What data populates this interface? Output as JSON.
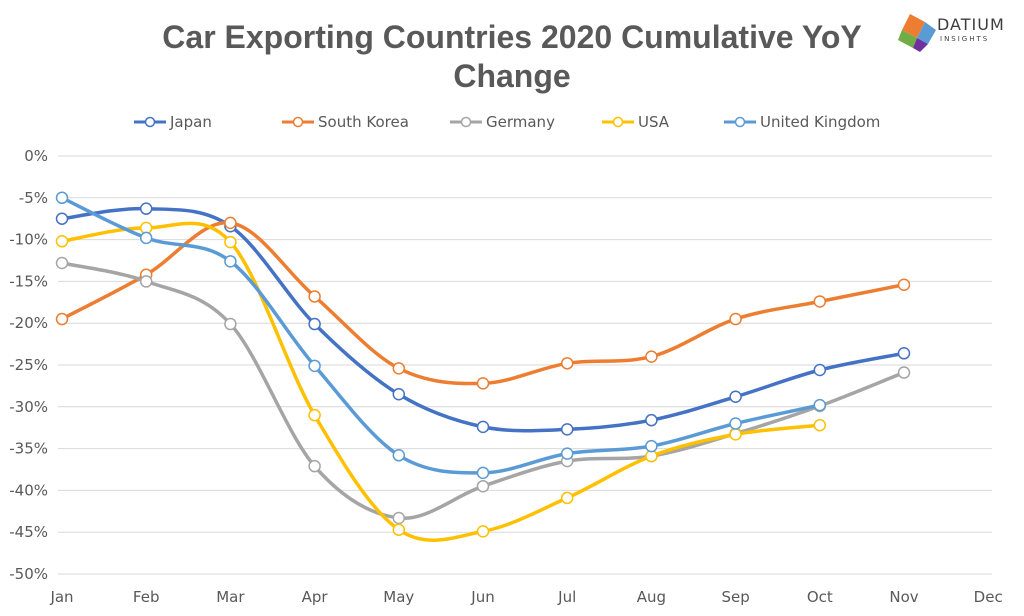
{
  "logo": {
    "main": "DATIUM",
    "sub": "INSIGHTS"
  },
  "colors": {
    "Japan": "#4472c4",
    "South Korea": "#ed7d31",
    "Germany": "#a5a5a5",
    "USA": "#ffc000",
    "United Kingdom": "#5b9bd5",
    "title": "#595959",
    "grid": "#d9d9d9"
  },
  "chart_data": {
    "type": "line",
    "title_lines": [
      "Car Exporting Countries 2020 Cumulative YoY",
      "Change"
    ],
    "xlabel": "",
    "ylabel": "",
    "categories": [
      "Jan",
      "Feb",
      "Mar",
      "Apr",
      "May",
      "Jun",
      "Jul",
      "Aug",
      "Sep",
      "Oct",
      "Nov",
      "Dec"
    ],
    "yticks": [
      "0%",
      "-5%",
      "-10%",
      "-15%",
      "-20%",
      "-25%",
      "-30%",
      "-35%",
      "-40%",
      "-45%",
      "-50%"
    ],
    "ylim": [
      -50,
      0
    ],
    "grid": "horizontal",
    "legend": "top",
    "smooth": true,
    "series": [
      {
        "name": "Japan",
        "values": [
          -7.5,
          -6.3,
          -8.4,
          -20.1,
          -28.5,
          -32.4,
          -32.7,
          -31.6,
          -28.8,
          -25.6,
          -23.6,
          null
        ]
      },
      {
        "name": "South Korea",
        "values": [
          -19.5,
          -14.2,
          -8.0,
          -16.8,
          -25.4,
          -27.2,
          -24.8,
          -24.0,
          -19.5,
          -17.4,
          -15.4,
          null
        ]
      },
      {
        "name": "Germany",
        "values": [
          -12.8,
          -15.0,
          -20.1,
          -37.1,
          -43.3,
          -39.5,
          -36.5,
          -35.9,
          -33.2,
          -29.9,
          -25.9,
          null
        ]
      },
      {
        "name": "USA",
        "values": [
          -10.2,
          -8.6,
          -10.3,
          -31.0,
          -44.7,
          -44.9,
          -40.9,
          -35.9,
          -33.3,
          -32.2,
          null,
          null
        ]
      },
      {
        "name": "United Kingdom",
        "values": [
          -5.0,
          -9.8,
          -12.6,
          -25.1,
          -35.8,
          -37.9,
          -35.6,
          -34.7,
          -32.0,
          -29.8,
          null,
          null
        ]
      }
    ]
  }
}
